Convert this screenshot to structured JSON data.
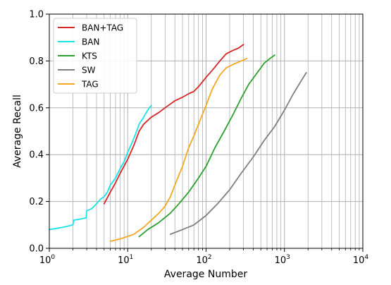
{
  "chart_data": {
    "type": "line",
    "title": "",
    "xlabel": "Average Number",
    "ylabel": "Average Recall",
    "xscale": "log",
    "xlim": [
      1,
      10000
    ],
    "ylim": [
      0,
      1
    ],
    "grid": true,
    "legend_position": "top-left",
    "x_ticks": [
      {
        "value": 1,
        "base": "10",
        "exp": "0"
      },
      {
        "value": 10,
        "base": "10",
        "exp": "1"
      },
      {
        "value": 100,
        "base": "10",
        "exp": "2"
      },
      {
        "value": 1000,
        "base": "10",
        "exp": "3"
      },
      {
        "value": 10000,
        "base": "10",
        "exp": "4"
      }
    ],
    "y_ticks": [
      {
        "value": 0.0,
        "label": "0.0"
      },
      {
        "value": 0.2,
        "label": "0.2"
      },
      {
        "value": 0.4,
        "label": "0.4"
      },
      {
        "value": 0.6,
        "label": "0.6"
      },
      {
        "value": 0.8,
        "label": "0.8"
      },
      {
        "value": 1.0,
        "label": "1.0"
      }
    ],
    "series": [
      {
        "name": "BAN+TAG",
        "color": "#d62728",
        "points": [
          [
            5.0,
            0.19
          ],
          [
            6.0,
            0.24
          ],
          [
            7.0,
            0.28
          ],
          [
            8.0,
            0.32
          ],
          [
            10.0,
            0.38
          ],
          [
            12.0,
            0.44
          ],
          [
            14.0,
            0.5
          ],
          [
            16.0,
            0.53
          ],
          [
            20.0,
            0.56
          ],
          [
            25.0,
            0.58
          ],
          [
            30.0,
            0.6
          ],
          [
            40.0,
            0.63
          ],
          [
            50.0,
            0.645
          ],
          [
            60.0,
            0.66
          ],
          [
            70.0,
            0.67
          ],
          [
            80.0,
            0.69
          ],
          [
            100.0,
            0.73
          ],
          [
            120.0,
            0.76
          ],
          [
            150.0,
            0.8
          ],
          [
            180.0,
            0.83
          ],
          [
            220.0,
            0.845
          ],
          [
            260.0,
            0.855
          ],
          [
            300.0,
            0.87
          ]
        ]
      },
      {
        "name": "BAN",
        "color": "#17e3e8",
        "points": [
          [
            1.0,
            0.08
          ],
          [
            1.5,
            0.09
          ],
          [
            2.0,
            0.1
          ],
          [
            2.05,
            0.12
          ],
          [
            2.5,
            0.125
          ],
          [
            2.95,
            0.13
          ],
          [
            3.0,
            0.16
          ],
          [
            3.5,
            0.17
          ],
          [
            4.0,
            0.19
          ],
          [
            4.5,
            0.21
          ],
          [
            5.0,
            0.22
          ],
          [
            5.5,
            0.24
          ],
          [
            6.0,
            0.27
          ],
          [
            7.0,
            0.3
          ],
          [
            8.0,
            0.34
          ],
          [
            9.0,
            0.37
          ],
          [
            10.0,
            0.41
          ],
          [
            11.0,
            0.44
          ],
          [
            12.0,
            0.47
          ],
          [
            13.0,
            0.5
          ],
          [
            14.0,
            0.53
          ],
          [
            16.0,
            0.56
          ],
          [
            18.0,
            0.59
          ],
          [
            20.0,
            0.61
          ]
        ]
      },
      {
        "name": "KTS",
        "color": "#2ca02c",
        "points": [
          [
            14.0,
            0.05
          ],
          [
            18.0,
            0.08
          ],
          [
            25.0,
            0.11
          ],
          [
            35.0,
            0.15
          ],
          [
            45.0,
            0.19
          ],
          [
            60.0,
            0.24
          ],
          [
            80.0,
            0.3
          ],
          [
            100.0,
            0.35
          ],
          [
            130.0,
            0.43
          ],
          [
            170.0,
            0.5
          ],
          [
            220.0,
            0.57
          ],
          [
            280.0,
            0.64
          ],
          [
            350.0,
            0.7
          ],
          [
            450.0,
            0.75
          ],
          [
            550.0,
            0.79
          ],
          [
            650.0,
            0.81
          ],
          [
            750.0,
            0.825
          ]
        ]
      },
      {
        "name": "SW",
        "color": "#7f7f7f",
        "points": [
          [
            35.0,
            0.06
          ],
          [
            50.0,
            0.08
          ],
          [
            70.0,
            0.1
          ],
          [
            100.0,
            0.14
          ],
          [
            140.0,
            0.19
          ],
          [
            200.0,
            0.25
          ],
          [
            280.0,
            0.32
          ],
          [
            400.0,
            0.39
          ],
          [
            550.0,
            0.46
          ],
          [
            750.0,
            0.52
          ],
          [
            1000.0,
            0.59
          ],
          [
            1300.0,
            0.66
          ],
          [
            1600.0,
            0.71
          ],
          [
            1900.0,
            0.75
          ]
        ]
      },
      {
        "name": "TAG",
        "color": "#f5a623",
        "points": [
          [
            6.0,
            0.03
          ],
          [
            8.0,
            0.04
          ],
          [
            12.0,
            0.06
          ],
          [
            16.0,
            0.09
          ],
          [
            20.0,
            0.12
          ],
          [
            25.0,
            0.15
          ],
          [
            30.0,
            0.18
          ],
          [
            35.0,
            0.22
          ],
          [
            40.0,
            0.27
          ],
          [
            50.0,
            0.35
          ],
          [
            60.0,
            0.43
          ],
          [
            70.0,
            0.48
          ],
          [
            80.0,
            0.53
          ],
          [
            100.0,
            0.61
          ],
          [
            120.0,
            0.68
          ],
          [
            150.0,
            0.74
          ],
          [
            180.0,
            0.77
          ],
          [
            220.0,
            0.785
          ],
          [
            280.0,
            0.8
          ],
          [
            330.0,
            0.81
          ]
        ]
      }
    ]
  }
}
